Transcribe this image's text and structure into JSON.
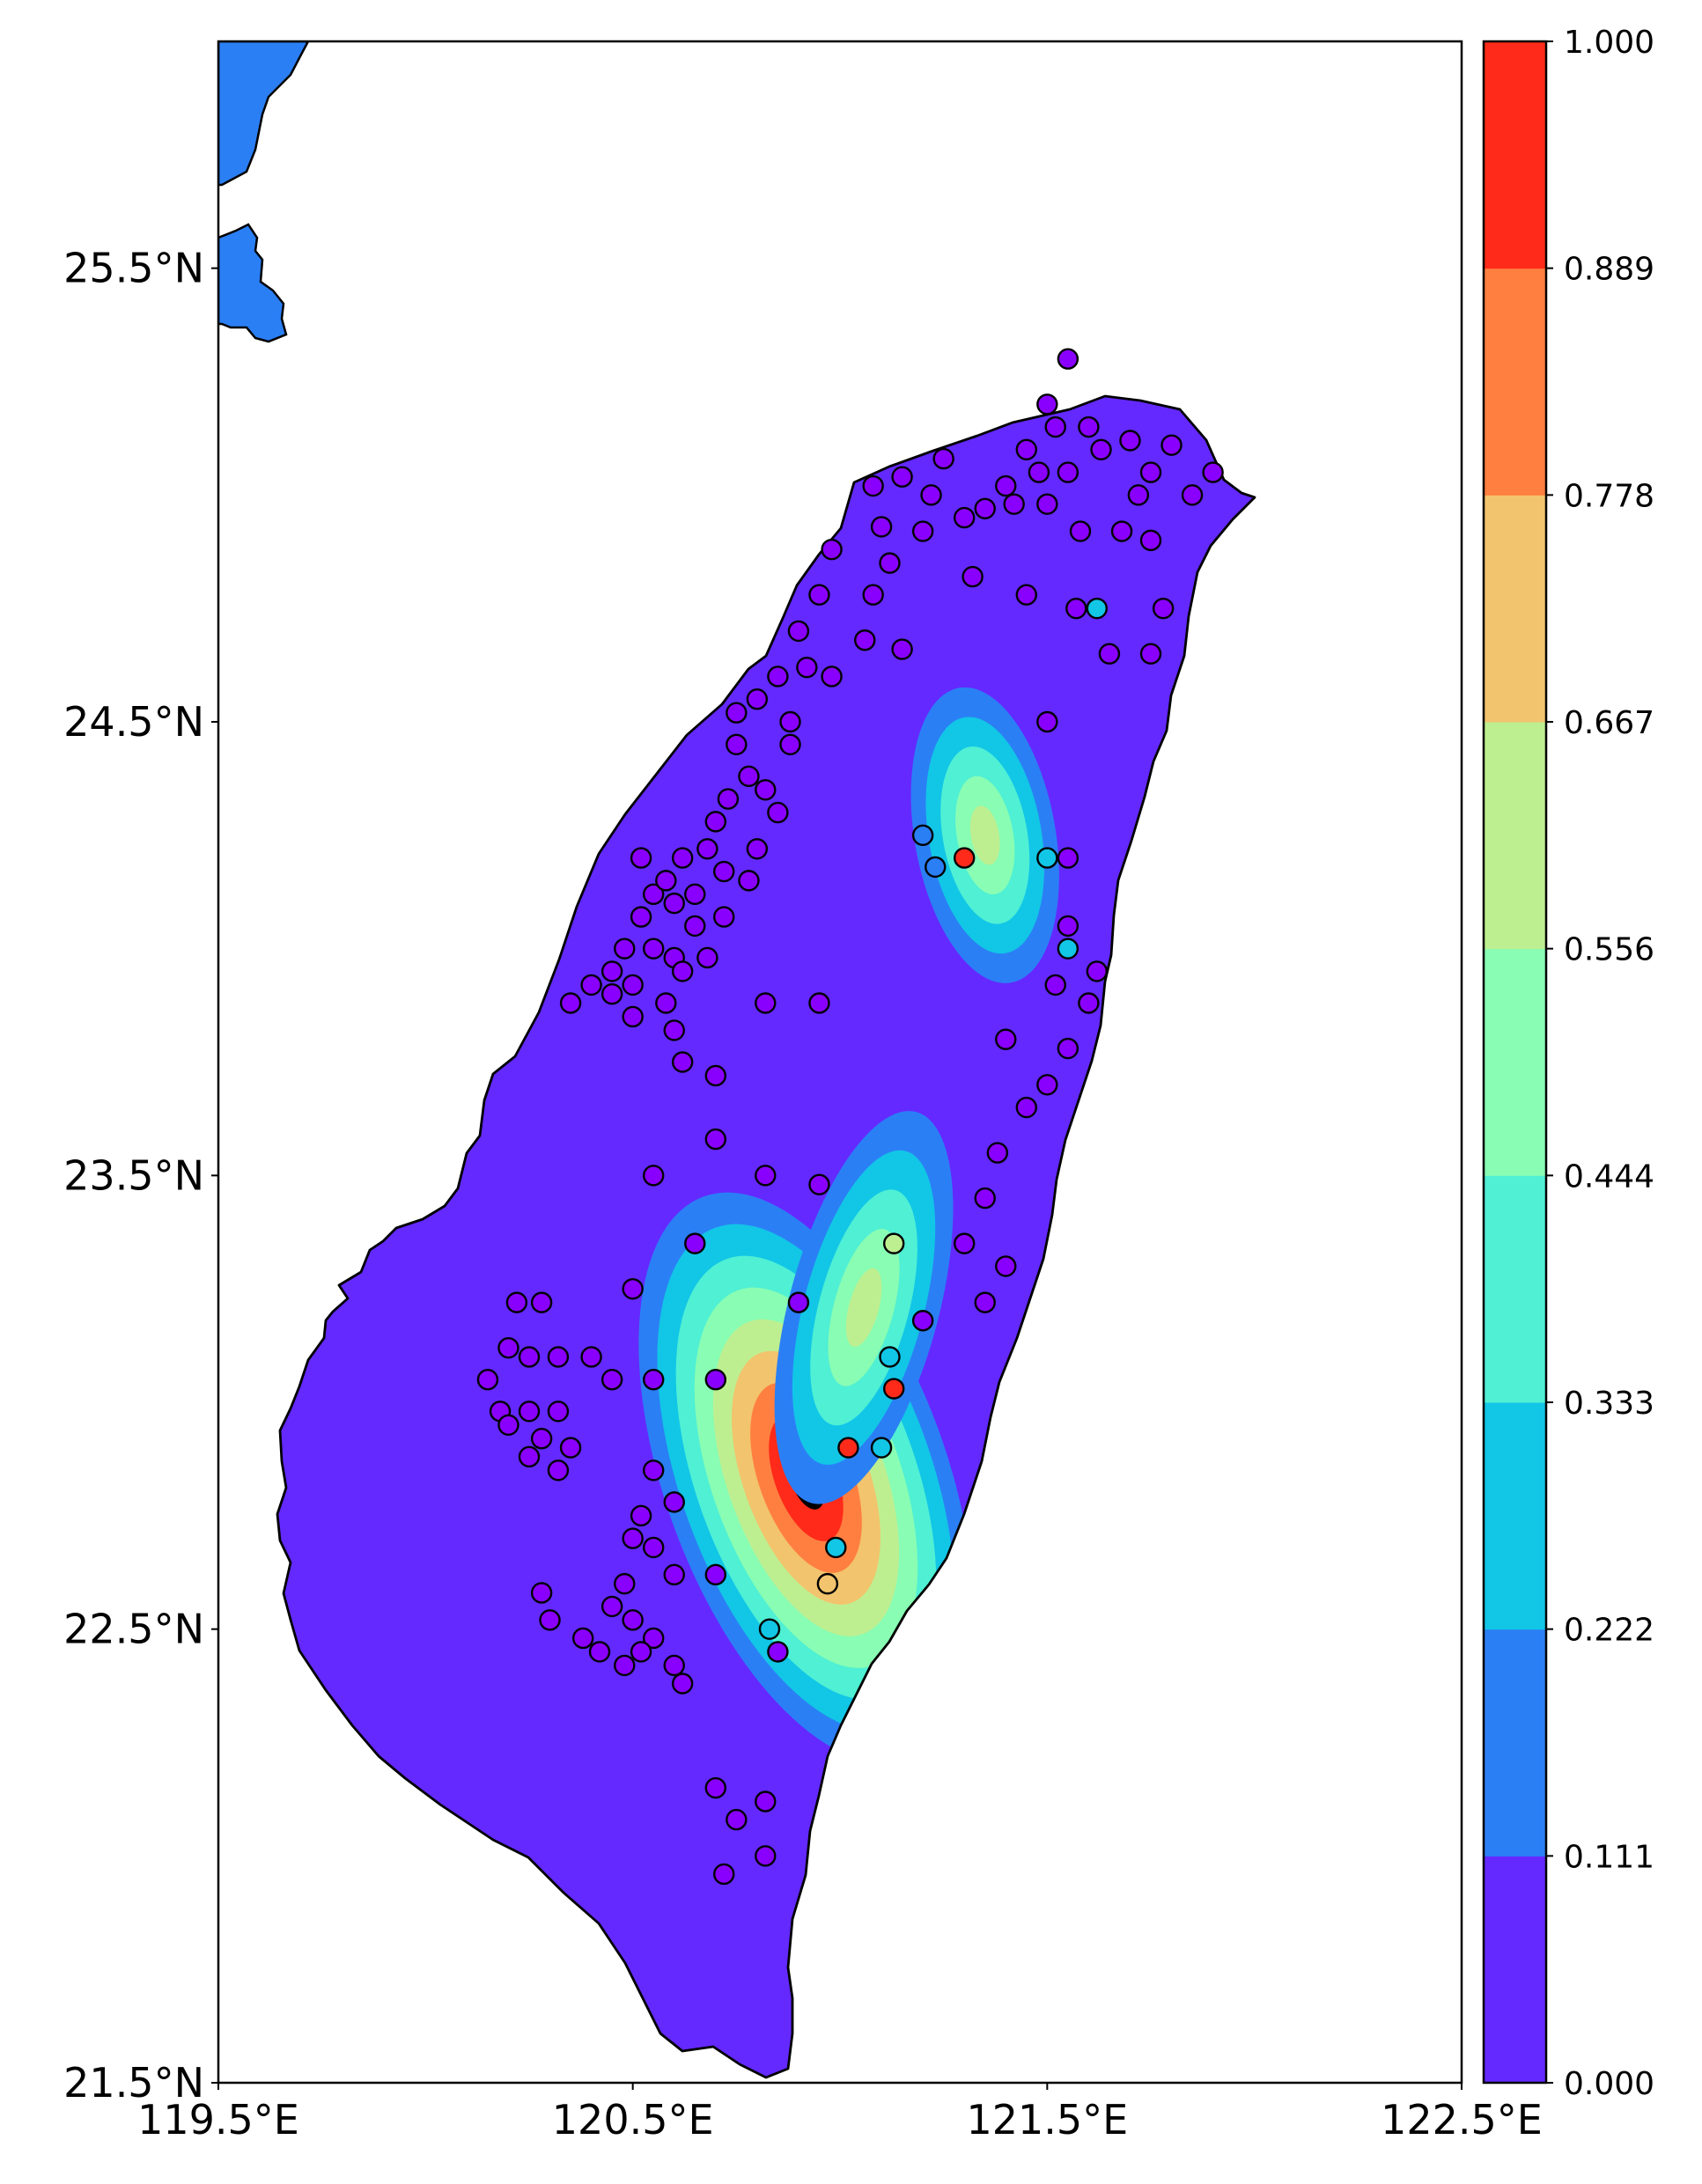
{
  "map": {
    "lon_range": [
      119.5,
      122.5
    ],
    "lat_range": [
      21.5,
      26.0
    ],
    "x_ticks": [
      {
        "value": 119.5,
        "label": "119.5°E"
      },
      {
        "value": 120.5,
        "label": "120.5°E"
      },
      {
        "value": 121.5,
        "label": "121.5°E"
      },
      {
        "value": 122.5,
        "label": "122.5°E"
      }
    ],
    "y_ticks": [
      {
        "value": 21.5,
        "label": "21.5°N"
      },
      {
        "value": 22.5,
        "label": "22.5°N"
      },
      {
        "value": 23.5,
        "label": "23.5°N"
      },
      {
        "value": 24.5,
        "label": "24.5°N"
      },
      {
        "value": 25.5,
        "label": "25.5°N"
      }
    ],
    "land_base_color": "#6429ff",
    "coastline_color": "#000000"
  },
  "colorbar": {
    "tick_labels": [
      "0.000",
      "0.111",
      "0.222",
      "0.333",
      "0.444",
      "0.556",
      "0.667",
      "0.778",
      "0.889",
      "1.000"
    ],
    "colors": [
      "#6429ff",
      "#2b7ff5",
      "#12c6e6",
      "#4ff0d4",
      "#88fdb3",
      "#bdef91",
      "#f2c46d",
      "#ff7f40",
      "#ff2a19"
    ]
  },
  "chart_data": {
    "type": "contour map with station scatter",
    "x_label_format": "longitude °E",
    "y_label_format": "latitude °N",
    "value_range": [
      0,
      1
    ],
    "hotspots": [
      {
        "lon": 120.95,
        "lat": 22.95,
        "peak_value": 1.0
      },
      {
        "lon": 121.35,
        "lat": 24.25,
        "peak_value": 0.6
      },
      {
        "lon": 121.1,
        "lat": 23.5,
        "peak_value": 0.5
      }
    ],
    "highlighted_stations": [
      {
        "lon": 121.3,
        "lat": 24.2,
        "value": 1.0
      },
      {
        "lon": 121.13,
        "lat": 23.03,
        "value": 1.0
      },
      {
        "lon": 121.02,
        "lat": 22.9,
        "value": 1.0
      },
      {
        "lon": 121.13,
        "lat": 23.35,
        "value": 0.6
      },
      {
        "lon": 120.97,
        "lat": 22.6,
        "value": 0.7
      },
      {
        "lon": 121.5,
        "lat": 24.2,
        "value": 0.3
      },
      {
        "lon": 121.55,
        "lat": 24.0,
        "value": 0.3
      },
      {
        "lon": 121.62,
        "lat": 24.75,
        "value": 0.3
      },
      {
        "lon": 121.1,
        "lat": 22.9,
        "value": 0.3
      },
      {
        "lon": 121.12,
        "lat": 23.1,
        "value": 0.3
      },
      {
        "lon": 120.99,
        "lat": 22.68,
        "value": 0.3
      },
      {
        "lon": 121.2,
        "lat": 24.25,
        "value": 0.15
      },
      {
        "lon": 121.23,
        "lat": 24.18,
        "value": 0.15
      },
      {
        "lon": 120.83,
        "lat": 22.5,
        "value": 0.3
      }
    ],
    "background_stations": [
      [
        121.55,
        25.3
      ],
      [
        121.5,
        25.2
      ],
      [
        121.52,
        25.15
      ],
      [
        121.45,
        25.1
      ],
      [
        121.48,
        25.05
      ],
      [
        121.4,
        25.02
      ],
      [
        121.6,
        25.15
      ],
      [
        121.63,
        25.1
      ],
      [
        121.7,
        25.12
      ],
      [
        121.55,
        25.05
      ],
      [
        121.75,
        25.05
      ],
      [
        121.5,
        24.98
      ],
      [
        121.42,
        24.98
      ],
      [
        121.35,
        24.97
      ],
      [
        121.25,
        25.08
      ],
      [
        121.15,
        25.04
      ],
      [
        121.08,
        25.02
      ],
      [
        121.2,
        24.92
      ],
      [
        121.1,
        24.93
      ],
      [
        121.22,
        25.0
      ],
      [
        121.3,
        24.95
      ],
      [
        121.58,
        24.92
      ],
      [
        121.68,
        24.92
      ],
      [
        121.75,
        24.9
      ],
      [
        121.72,
        25.0
      ],
      [
        121.85,
        25.0
      ],
      [
        121.9,
        25.05
      ],
      [
        121.8,
        25.11
      ],
      [
        121.32,
        24.82
      ],
      [
        121.45,
        24.78
      ],
      [
        121.57,
        24.75
      ],
      [
        121.65,
        24.65
      ],
      [
        121.75,
        24.65
      ],
      [
        121.78,
        24.75
      ],
      [
        121.12,
        24.85
      ],
      [
        121.08,
        24.78
      ],
      [
        120.98,
        24.88
      ],
      [
        120.95,
        24.78
      ],
      [
        120.9,
        24.7
      ],
      [
        120.92,
        24.62
      ],
      [
        120.98,
        24.6
      ],
      [
        121.06,
        24.68
      ],
      [
        121.15,
        24.66
      ],
      [
        120.85,
        24.6
      ],
      [
        120.8,
        24.55
      ],
      [
        120.75,
        24.52
      ],
      [
        120.75,
        24.45
      ],
      [
        120.78,
        24.38
      ],
      [
        120.73,
        24.33
      ],
      [
        120.7,
        24.28
      ],
      [
        120.68,
        24.22
      ],
      [
        120.72,
        24.17
      ],
      [
        120.65,
        24.12
      ],
      [
        120.6,
        24.1
      ],
      [
        120.55,
        24.12
      ],
      [
        120.52,
        24.07
      ],
      [
        120.48,
        24.0
      ],
      [
        120.55,
        24.0
      ],
      [
        120.6,
        23.98
      ],
      [
        120.65,
        24.05
      ],
      [
        120.62,
        23.95
      ],
      [
        120.5,
        23.92
      ],
      [
        120.45,
        23.9
      ],
      [
        120.58,
        23.88
      ],
      [
        120.5,
        23.85
      ],
      [
        120.6,
        23.82
      ],
      [
        120.4,
        23.92
      ],
      [
        120.35,
        23.88
      ],
      [
        120.45,
        23.95
      ],
      [
        120.52,
        24.2
      ],
      [
        120.58,
        24.15
      ],
      [
        120.62,
        24.2
      ],
      [
        120.88,
        24.5
      ],
      [
        120.88,
        24.45
      ],
      [
        120.82,
        24.35
      ],
      [
        120.85,
        24.3
      ],
      [
        120.8,
        24.22
      ],
      [
        120.78,
        24.15
      ],
      [
        120.72,
        24.07
      ],
      [
        120.68,
        23.98
      ],
      [
        120.62,
        23.75
      ],
      [
        120.7,
        23.72
      ],
      [
        120.82,
        23.88
      ],
      [
        120.95,
        23.88
      ],
      [
        120.7,
        23.58
      ],
      [
        120.82,
        23.5
      ],
      [
        120.95,
        23.48
      ],
      [
        120.55,
        23.5
      ],
      [
        120.65,
        23.35
      ],
      [
        120.9,
        23.22
      ],
      [
        120.5,
        23.25
      ],
      [
        120.22,
        23.22
      ],
      [
        120.28,
        23.22
      ],
      [
        120.2,
        23.12
      ],
      [
        120.25,
        23.1
      ],
      [
        120.32,
        23.1
      ],
      [
        120.4,
        23.1
      ],
      [
        120.45,
        23.05
      ],
      [
        120.55,
        23.05
      ],
      [
        120.7,
        23.05
      ],
      [
        120.15,
        23.05
      ],
      [
        120.18,
        22.98
      ],
      [
        120.25,
        22.98
      ],
      [
        120.32,
        22.98
      ],
      [
        120.28,
        22.92
      ],
      [
        120.35,
        22.9
      ],
      [
        120.2,
        22.95
      ],
      [
        120.25,
        22.88
      ],
      [
        120.32,
        22.85
      ],
      [
        120.55,
        22.85
      ],
      [
        120.6,
        22.78
      ],
      [
        120.52,
        22.75
      ],
      [
        120.5,
        22.7
      ],
      [
        120.55,
        22.68
      ],
      [
        120.6,
        22.62
      ],
      [
        120.7,
        22.62
      ],
      [
        120.48,
        22.6
      ],
      [
        120.45,
        22.55
      ],
      [
        120.5,
        22.52
      ],
      [
        120.55,
        22.48
      ],
      [
        120.52,
        22.45
      ],
      [
        120.48,
        22.42
      ],
      [
        120.42,
        22.45
      ],
      [
        120.38,
        22.48
      ],
      [
        120.3,
        22.52
      ],
      [
        120.28,
        22.58
      ],
      [
        120.6,
        22.42
      ],
      [
        120.62,
        22.38
      ],
      [
        120.7,
        22.15
      ],
      [
        120.75,
        22.08
      ],
      [
        120.82,
        22.12
      ],
      [
        120.82,
        22.0
      ],
      [
        120.72,
        21.96
      ],
      [
        120.85,
        22.45
      ],
      [
        121.4,
        23.8
      ],
      [
        121.45,
        23.65
      ],
      [
        121.5,
        23.7
      ],
      [
        121.55,
        23.78
      ],
      [
        121.6,
        23.88
      ],
      [
        121.52,
        23.92
      ],
      [
        121.38,
        23.55
      ],
      [
        121.35,
        23.45
      ],
      [
        121.4,
        23.3
      ],
      [
        121.35,
        23.22
      ],
      [
        121.3,
        23.35
      ],
      [
        121.2,
        23.18
      ],
      [
        121.55,
        24.2
      ],
      [
        121.5,
        24.5
      ],
      [
        121.55,
        24.05
      ],
      [
        121.62,
        23.95
      ]
    ]
  }
}
